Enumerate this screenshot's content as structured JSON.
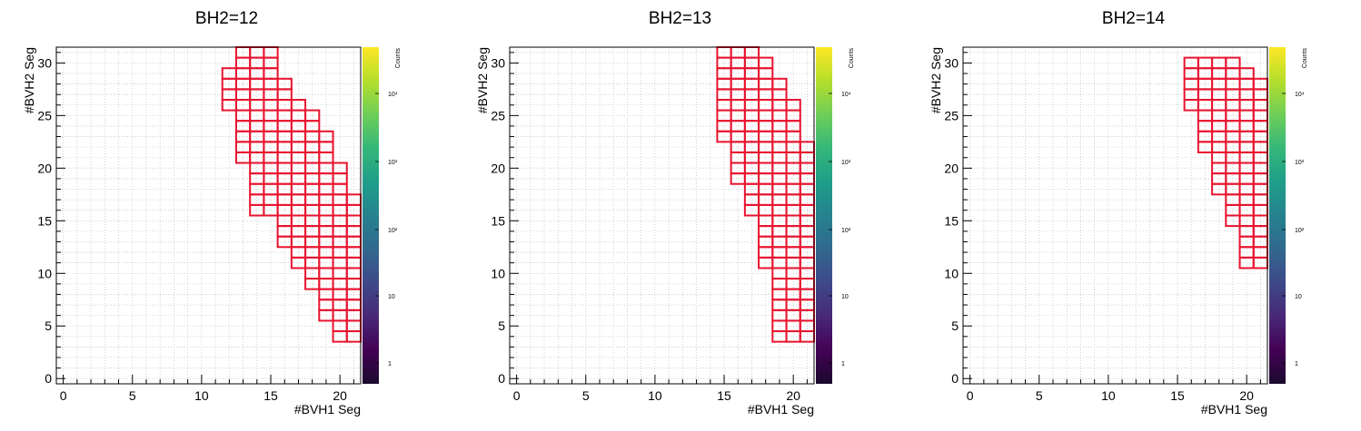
{
  "chart_data": [
    {
      "type": "heatmap",
      "title": "BH2=12",
      "xlabel": "#BVH1 Seg",
      "ylabel": "#BVH2 Seg",
      "colorbar_label": "Counts",
      "xlim": [
        -0.5,
        21.5
      ],
      "ylim": [
        -0.5,
        31.5
      ],
      "x_ticks": [
        "0",
        "5",
        "10",
        "15",
        "20"
      ],
      "y_ticks": [
        "0",
        "5",
        "10",
        "15",
        "20",
        "25",
        "30"
      ],
      "colorbar_ticks": [
        "1",
        "10",
        "10²",
        "10³",
        "10⁴"
      ],
      "colorscale": "viridis",
      "grid": true,
      "bin_style": "red box outline",
      "box_color": "#e8132e",
      "bins_by_x": [
        {
          "x": 12,
          "y_min": 26,
          "y_max": 29
        },
        {
          "x": 13,
          "y_min": 21,
          "y_max": 31
        },
        {
          "x": 14,
          "y_min": 16,
          "y_max": 31
        },
        {
          "x": 15,
          "y_min": 16,
          "y_max": 31
        },
        {
          "x": 16,
          "y_min": 13,
          "y_max": 28
        },
        {
          "x": 17,
          "y_min": 11,
          "y_max": 26
        },
        {
          "x": 18,
          "y_min": 9,
          "y_max": 25
        },
        {
          "x": 19,
          "y_min": 6,
          "y_max": 23
        },
        {
          "x": 20,
          "y_min": 4,
          "y_max": 20
        },
        {
          "x": 21,
          "y_min": 4,
          "y_max": 17
        }
      ]
    },
    {
      "type": "heatmap",
      "title": "BH2=13",
      "xlabel": "#BVH1 Seg",
      "ylabel": "#BVH2 Seg",
      "colorbar_label": "Counts",
      "xlim": [
        -0.5,
        21.5
      ],
      "ylim": [
        -0.5,
        31.5
      ],
      "x_ticks": [
        "0",
        "5",
        "10",
        "15",
        "20"
      ],
      "y_ticks": [
        "0",
        "5",
        "10",
        "15",
        "20",
        "25",
        "30"
      ],
      "colorbar_ticks": [
        "1",
        "10",
        "10²",
        "10³",
        "10⁴"
      ],
      "colorscale": "viridis",
      "grid": true,
      "bin_style": "red box outline",
      "box_color": "#e8132e",
      "bins_by_x": [
        {
          "x": 15,
          "y_min": 23,
          "y_max": 31
        },
        {
          "x": 16,
          "y_min": 19,
          "y_max": 31
        },
        {
          "x": 17,
          "y_min": 16,
          "y_max": 31
        },
        {
          "x": 18,
          "y_min": 11,
          "y_max": 30
        },
        {
          "x": 19,
          "y_min": 4,
          "y_max": 28
        },
        {
          "x": 20,
          "y_min": 4,
          "y_max": 26
        },
        {
          "x": 21,
          "y_min": 4,
          "y_max": 22
        }
      ]
    },
    {
      "type": "heatmap",
      "title": "BH2=14",
      "xlabel": "#BVH1 Seg",
      "ylabel": "#BVH2 Seg",
      "colorbar_label": "Counts",
      "xlim": [
        -0.5,
        21.5
      ],
      "ylim": [
        -0.5,
        31.5
      ],
      "x_ticks": [
        "0",
        "5",
        "10",
        "15",
        "20"
      ],
      "y_ticks": [
        "0",
        "5",
        "10",
        "15",
        "20",
        "25",
        "30"
      ],
      "colorbar_ticks": [
        "1",
        "10",
        "10²",
        "10³",
        "10⁴"
      ],
      "colorscale": "viridis",
      "grid": true,
      "bin_style": "red box outline",
      "box_color": "#e8132e",
      "bins_by_x": [
        {
          "x": 16,
          "y_min": 26,
          "y_max": 30
        },
        {
          "x": 17,
          "y_min": 22,
          "y_max": 30
        },
        {
          "x": 18,
          "y_min": 18,
          "y_max": 30
        },
        {
          "x": 19,
          "y_min": 15,
          "y_max": 30
        },
        {
          "x": 20,
          "y_min": 11,
          "y_max": 29
        },
        {
          "x": 21,
          "y_min": 11,
          "y_max": 28
        }
      ]
    }
  ]
}
